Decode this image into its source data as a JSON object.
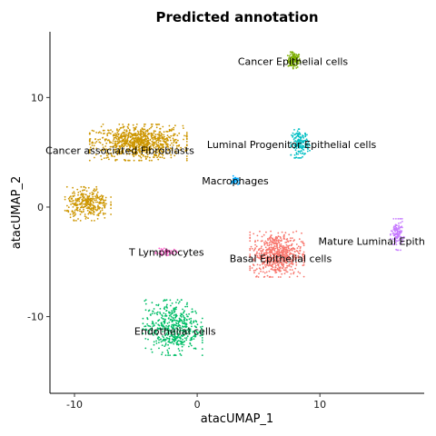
{
  "chart_data": {
    "type": "scatter",
    "title": "Predicted annotation",
    "xlabel": "atacUMAP_1",
    "ylabel": "atacUMAP_2",
    "xlim": [
      -12,
      18.5
    ],
    "ylim": [
      -17,
      16
    ],
    "xticks": [
      -10,
      0,
      10
    ],
    "yticks": [
      -10,
      0,
      10
    ],
    "grid": false,
    "legend": "none",
    "clusters": [
      {
        "name": "Cancer Epithelial cells",
        "color": "#7CAE00",
        "center": [
          7.9,
          13.4
        ],
        "spread": [
          0.5,
          0.7
        ],
        "label_at": [
          7.8,
          13.3
        ],
        "n": 120
      },
      {
        "name": "Cancer associated Fibroblasts",
        "color": "#CD9600",
        "center": [
          -4.8,
          5.9
        ],
        "spread": [
          3.6,
          1.5
        ],
        "label_at": [
          -6.3,
          5.2
        ],
        "n": 900
      },
      {
        "name": "Luminal Progenitor Epithelial cells",
        "color": "#00BFC4",
        "center": [
          8.4,
          5.8
        ],
        "spread": [
          0.7,
          1.2
        ],
        "label_at": [
          7.7,
          5.7
        ],
        "n": 160
      },
      {
        "name": "Macrophages",
        "color": "#00A9FF",
        "center": [
          3.1,
          2.4
        ],
        "spread": [
          0.3,
          0.4
        ],
        "label_at": [
          3.1,
          2.4
        ],
        "n": 40
      },
      {
        "name": "Mature Luminal Epithelial cells",
        "color": "#C77CFF",
        "center": [
          16.3,
          -2.5
        ],
        "spread": [
          0.5,
          1.3
        ],
        "label_at": [
          16.1,
          -3.1
        ],
        "n": 120
      },
      {
        "name": "T Lymphocytes",
        "color": "#FF61CC",
        "center": [
          -2.5,
          -4.1
        ],
        "spread": [
          0.8,
          0.3
        ],
        "label_at": [
          -2.5,
          -4.1
        ],
        "n": 50
      },
      {
        "name": "Basal Epithelial cells",
        "color": "#F8766D",
        "center": [
          6.5,
          -4.3
        ],
        "spread": [
          2.0,
          1.9
        ],
        "label_at": [
          6.8,
          -4.7
        ],
        "n": 650
      },
      {
        "name": "Endothelial cells",
        "color": "#00BE67",
        "center": [
          -2.0,
          -11.0
        ],
        "spread": [
          2.2,
          2.3
        ],
        "label_at": [
          -1.8,
          -11.3
        ],
        "n": 520
      },
      {
        "name": "",
        "color": "#CD9600",
        "center": [
          -8.9,
          0.3
        ],
        "spread": [
          1.7,
          1.4
        ],
        "label_at": null,
        "n": 330
      }
    ]
  }
}
